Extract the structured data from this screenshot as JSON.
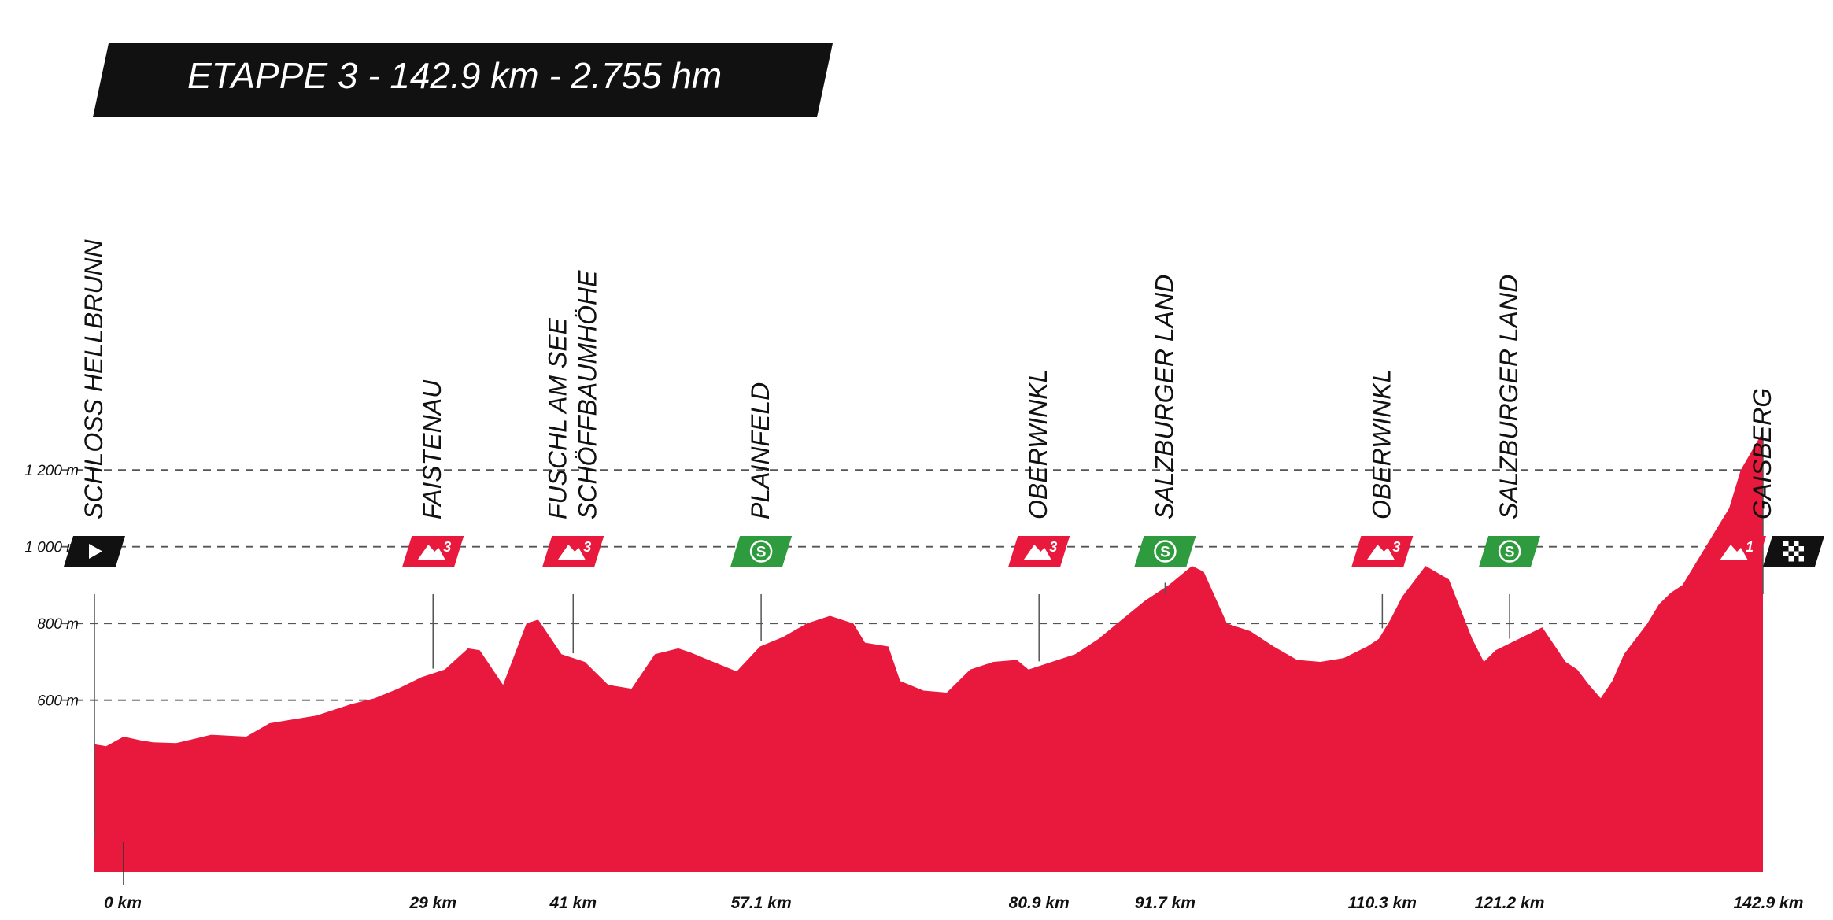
{
  "title": "ETAPPE 3 - 142.9 km - 2.755 hm",
  "colors": {
    "profile": "#e8193c",
    "sprint": "#2e9b3e",
    "banner": "#111111",
    "grid": "#555555"
  },
  "chart_data": {
    "type": "area",
    "title": "ETAPPE 3 - 142.9 km - 2.755 hm",
    "xlabel": "",
    "ylabel": "",
    "xlim": [
      0,
      142.9
    ],
    "ylim": [
      400,
      1350
    ],
    "grid": true,
    "y_ticks": [
      {
        "value": 600,
        "label": "600 m"
      },
      {
        "value": 800,
        "label": "800 m"
      },
      {
        "value": 1000,
        "label": "1 000 m"
      },
      {
        "value": 1200,
        "label": "1 200 m"
      }
    ],
    "x": [
      0,
      1,
      2.5,
      4,
      5,
      7,
      10,
      13,
      15,
      19,
      22,
      24,
      26,
      28,
      30,
      32,
      33,
      35,
      37,
      38,
      40,
      42,
      44,
      46,
      48,
      50,
      51,
      53,
      55,
      57,
      59,
      61,
      63,
      65,
      66,
      68,
      69,
      71,
      73,
      75,
      77,
      79,
      80,
      82,
      84,
      86,
      88,
      90,
      92,
      94,
      95,
      97,
      99,
      101,
      103,
      105,
      107,
      109,
      110,
      111,
      112,
      114,
      116,
      118,
      119,
      120,
      122,
      124,
      126,
      127,
      128,
      129,
      130,
      131,
      132,
      133,
      134,
      135,
      136,
      137,
      138,
      139,
      140,
      141,
      142.9
    ],
    "elevation": [
      485,
      480,
      505,
      495,
      490,
      488,
      510,
      505,
      540,
      560,
      590,
      605,
      630,
      660,
      680,
      735,
      730,
      640,
      800,
      810,
      720,
      700,
      640,
      630,
      720,
      735,
      725,
      700,
      675,
      740,
      765,
      800,
      820,
      800,
      750,
      740,
      650,
      625,
      620,
      680,
      700,
      705,
      680,
      700,
      720,
      760,
      810,
      860,
      900,
      950,
      935,
      800,
      780,
      740,
      705,
      700,
      710,
      740,
      760,
      810,
      870,
      950,
      915,
      760,
      700,
      730,
      760,
      790,
      700,
      680,
      640,
      605,
      650,
      720,
      760,
      800,
      850,
      880,
      900,
      950,
      1000,
      1050,
      1100,
      1200,
      1300
    ],
    "checkpoints": [
      {
        "label": "0 km",
        "km": 0,
        "names": [
          "SCHLOSS HELLBRUNN"
        ],
        "icons": [
          "start"
        ]
      },
      {
        "label": "29 km",
        "km": 29,
        "names": [
          "FAISTENAU"
        ],
        "icons": [
          "kom"
        ],
        "category": "3"
      },
      {
        "label": "41 km",
        "km": 41,
        "names": [
          "FUSCHL AM SEE",
          "SCHÖFFBAUMHÖHE"
        ],
        "icons": [
          "kom"
        ],
        "category": "3"
      },
      {
        "label": "57.1 km",
        "km": 57.1,
        "names": [
          "PLAINFELD"
        ],
        "icons": [
          "sprint"
        ],
        "category": "S"
      },
      {
        "label": "80.9 km",
        "km": 80.9,
        "names": [
          "OBERWINKL"
        ],
        "icons": [
          "kom"
        ],
        "category": "3"
      },
      {
        "label": "91.7 km",
        "km": 91.7,
        "names": [
          "SALZBURGER LAND"
        ],
        "icons": [
          "sprint"
        ],
        "category": "S"
      },
      {
        "label": "110.3 km",
        "km": 110.3,
        "names": [
          "OBERWINKL"
        ],
        "icons": [
          "kom"
        ],
        "category": "3"
      },
      {
        "label": "121.2 km",
        "km": 121.2,
        "names": [
          "SALZBURGER LAND"
        ],
        "icons": [
          "sprint"
        ],
        "category": "S"
      },
      {
        "label": "142.9 km",
        "km": 142.9,
        "names": [
          "GAISBERG"
        ],
        "icons": [
          "kom",
          "finish"
        ],
        "category": "1"
      }
    ]
  }
}
